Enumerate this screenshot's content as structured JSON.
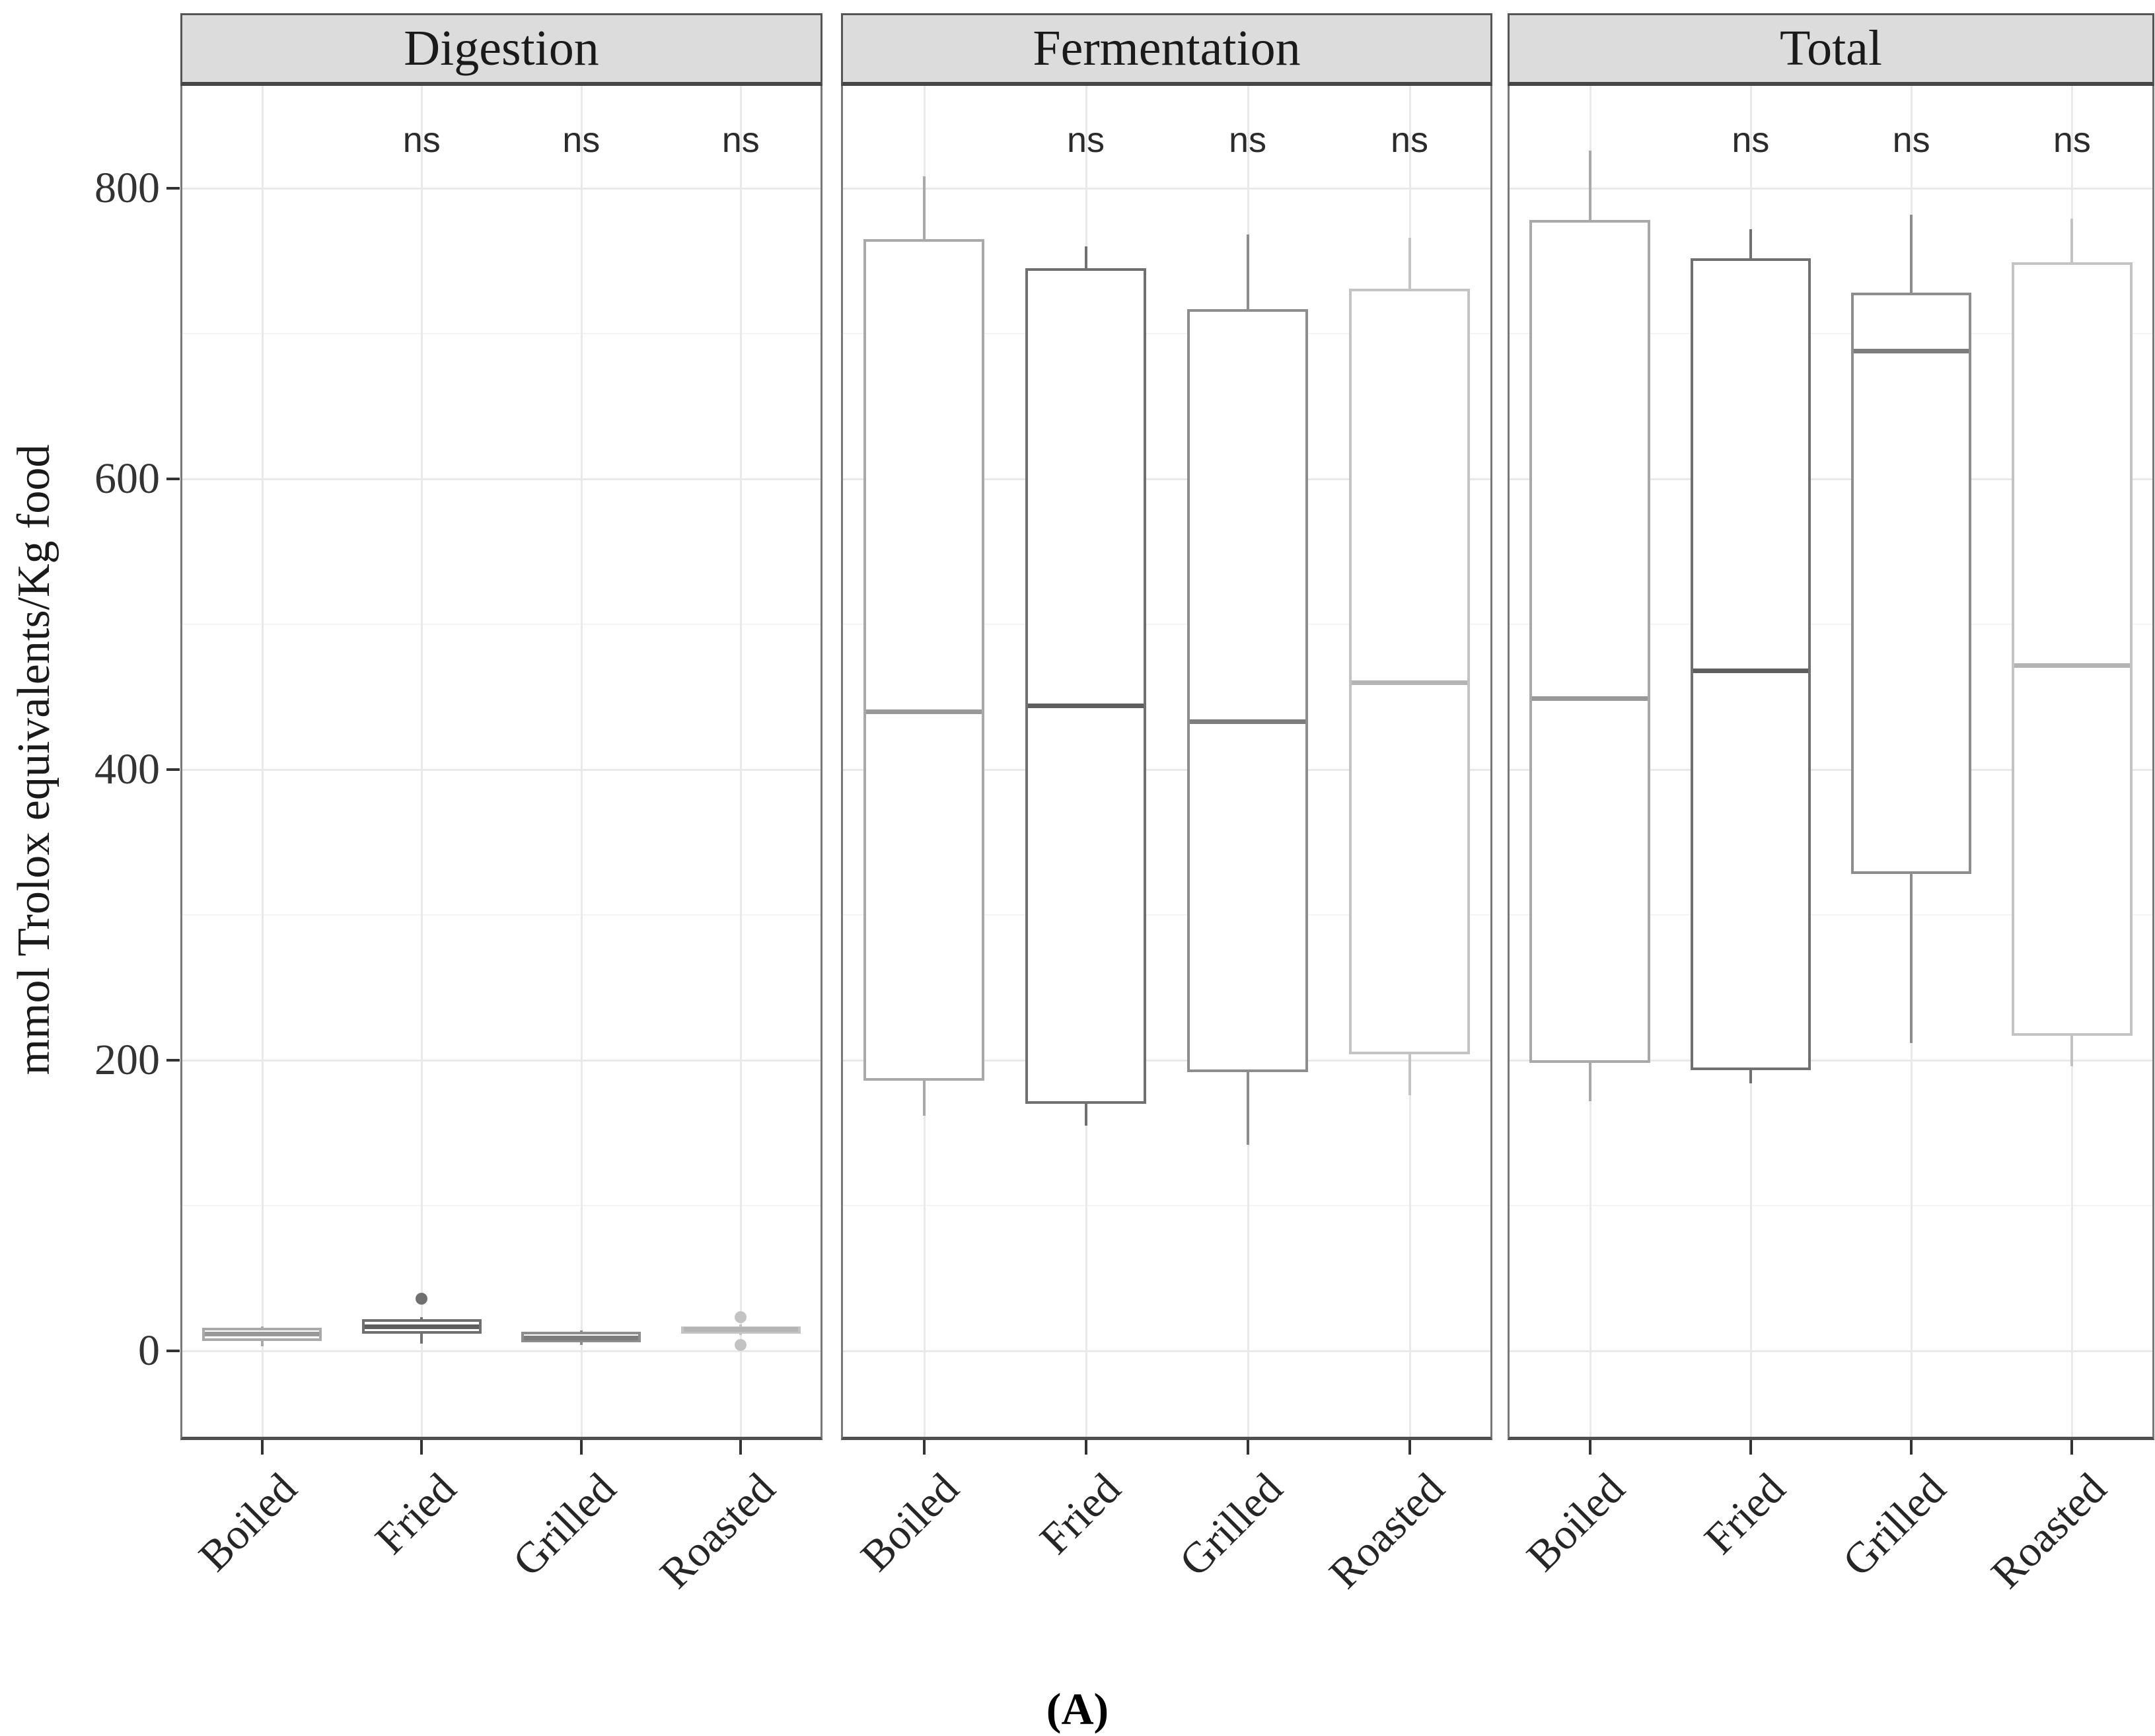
{
  "caption": "(A)",
  "chart_data": {
    "type": "boxplot",
    "ylabel": "mmol Trolox equivalents/Kg food",
    "y_ticks": [
      0,
      200,
      400,
      600,
      800
    ],
    "y_minor_ticks": [
      100,
      300,
      500,
      700
    ],
    "y_range": [
      -61,
      870
    ],
    "grid": "on",
    "categories": [
      "Boiled",
      "Fried",
      "Grilled",
      "Roasted"
    ],
    "category_colors": {
      "Boiled": "#a9a9a9",
      "Fried": "#707070",
      "Grilled": "#8d8d8d",
      "Roasted": "#c3c3c3"
    },
    "category_median_colors": {
      "Boiled": "#989898",
      "Fried": "#5e5e5e",
      "Grilled": "#7d7d7d",
      "Roasted": "#b4b4b4"
    },
    "significance_label": "ns",
    "annotated_categories": [
      "Fried",
      "Grilled",
      "Roasted"
    ],
    "facets": [
      {
        "label": "Digestion",
        "boxes": [
          {
            "category": "Boiled",
            "min": 3,
            "q1": 7,
            "median": 12,
            "q3": 16,
            "max": 17,
            "outliers": []
          },
          {
            "category": "Fried",
            "min": 5,
            "q1": 12,
            "median": 17,
            "q3": 22,
            "max": 23,
            "outliers": [
              36
            ]
          },
          {
            "category": "Grilled",
            "min": 4,
            "q1": 6,
            "median": 9,
            "q3": 13,
            "max": 14,
            "outliers": []
          },
          {
            "category": "Roasted",
            "min": 11,
            "q1": 12,
            "median": 15,
            "q3": 17,
            "max": 18,
            "outliers": [
              23,
              4
            ]
          }
        ]
      },
      {
        "label": "Fermentation",
        "boxes": [
          {
            "category": "Boiled",
            "min": 162,
            "q1": 186,
            "median": 440,
            "q3": 765,
            "max": 808,
            "outliers": []
          },
          {
            "category": "Fried",
            "min": 155,
            "q1": 170,
            "median": 444,
            "q3": 745,
            "max": 760,
            "outliers": []
          },
          {
            "category": "Grilled",
            "min": 142,
            "q1": 192,
            "median": 433,
            "q3": 717,
            "max": 768,
            "outliers": []
          },
          {
            "category": "Roasted",
            "min": 176,
            "q1": 204,
            "median": 460,
            "q3": 731,
            "max": 766,
            "outliers": []
          }
        ]
      },
      {
        "label": "Total",
        "boxes": [
          {
            "category": "Boiled",
            "min": 172,
            "q1": 198,
            "median": 449,
            "q3": 778,
            "max": 826,
            "outliers": []
          },
          {
            "category": "Fried",
            "min": 184,
            "q1": 193,
            "median": 468,
            "q3": 752,
            "max": 772,
            "outliers": []
          },
          {
            "category": "Grilled",
            "min": 212,
            "q1": 328,
            "median": 688,
            "q3": 728,
            "max": 782,
            "outliers": []
          },
          {
            "category": "Roasted",
            "min": 196,
            "q1": 217,
            "median": 472,
            "q3": 749,
            "max": 779,
            "outliers": []
          }
        ]
      }
    ]
  }
}
